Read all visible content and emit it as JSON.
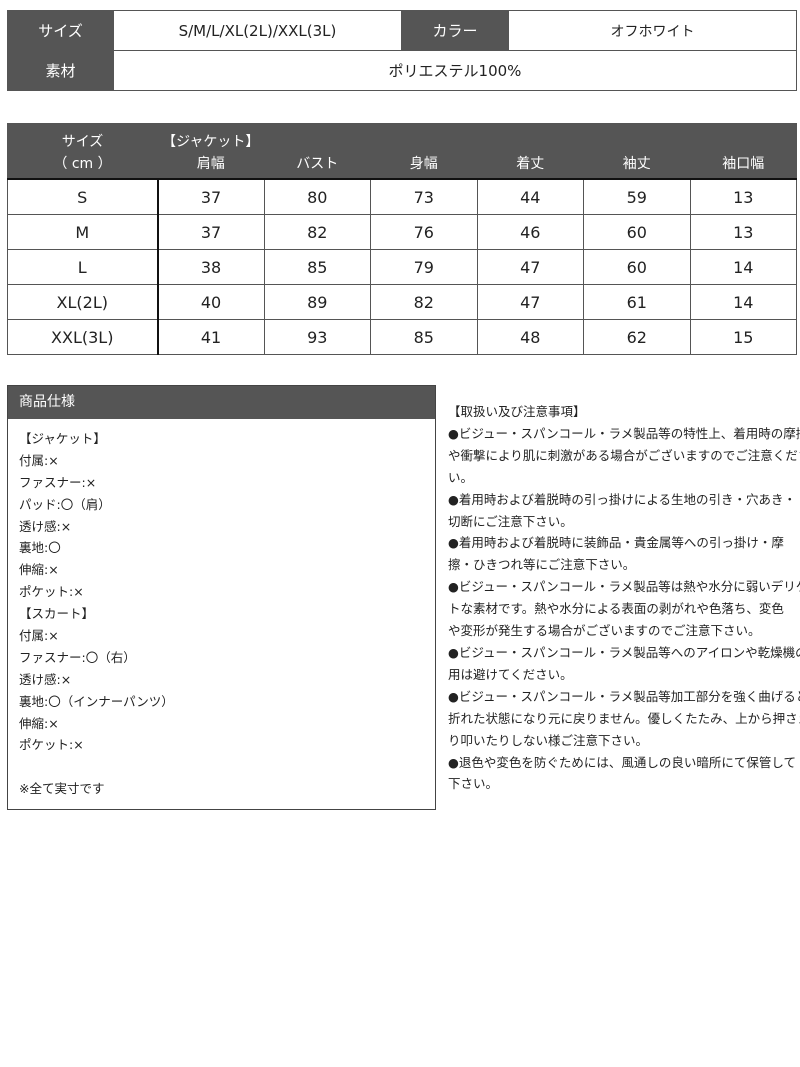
{
  "info": {
    "size_label": "サイズ",
    "size_value": "S/M/L/XL(2L)/XXL(3L)",
    "color_label": "カラー",
    "color_value": "オフホワイト",
    "material_label": "素材",
    "material_value": "ポリエステル100%"
  },
  "size_table": {
    "headers": [
      [
        "サイズ",
        "（ cm ）"
      ],
      [
        "【ジャケット】",
        "肩幅"
      ],
      [
        "",
        "バスト"
      ],
      [
        "",
        "身幅"
      ],
      [
        "",
        "着丈"
      ],
      [
        "",
        "袖丈"
      ],
      [
        "",
        "袖口幅"
      ]
    ],
    "rows": [
      [
        "S",
        "37",
        "80",
        "73",
        "44",
        "59",
        "13"
      ],
      [
        "M",
        "37",
        "82",
        "76",
        "46",
        "60",
        "13"
      ],
      [
        "L",
        "38",
        "85",
        "79",
        "47",
        "60",
        "14"
      ],
      [
        "XL(2L)",
        "40",
        "89",
        "82",
        "47",
        "61",
        "14"
      ],
      [
        "XXL(3L)",
        "41",
        "93",
        "85",
        "48",
        "62",
        "15"
      ]
    ]
  },
  "spec": {
    "title": "商品仕様",
    "lines": [
      "【ジャケット】",
      "付属:×",
      "ファスナー:×",
      "パッド:〇（肩）",
      "透け感:×",
      "裏地:〇",
      "伸縮:×",
      "ポケット:×",
      "【スカート】",
      "付属:×",
      "ファスナー:〇（右）",
      "透け感:×",
      "裏地:〇（インナーパンツ）",
      "伸縮:×",
      "ポケット:×",
      "",
      "※全て実寸です"
    ]
  },
  "notes": {
    "lines": [
      "【取扱い及び注意事項】",
      "●ビジュー・スパンコール・ラメ製品等の特性上、着用時の摩擦",
      "や衝撃により肌に刺激がある場合がございますのでご注意くださ",
      "い。",
      "●着用時および着脱時の引っ掛けによる生地の引き・穴あき・",
      "切断にご注意下さい。",
      "●着用時および着脱時に装飾品・貴金属等への引っ掛け・摩",
      "擦・ひきつれ等にご注意下さい。",
      "●ビジュー・スパンコール・ラメ製品等は熱や水分に弱いデリケー",
      "トな素材です。熱や水分による表面の剥がれや色落ち、変色",
      "や変形が発生する場合がございますのでご注意下さい。",
      "●ビジュー・スパンコール・ラメ製品等へのアイロンや乾燥機の使",
      "用は避けてください。",
      "●ビジュー・スパンコール・ラメ製品等加工部分を強く曲げると",
      "折れた状態になり元に戻りません。優しくたたみ、上から押さえた",
      "り叩いたりしない様ご注意下さい。",
      "●退色や変色を防ぐためには、風通しの良い暗所にて保管して",
      "下さい。"
    ]
  }
}
